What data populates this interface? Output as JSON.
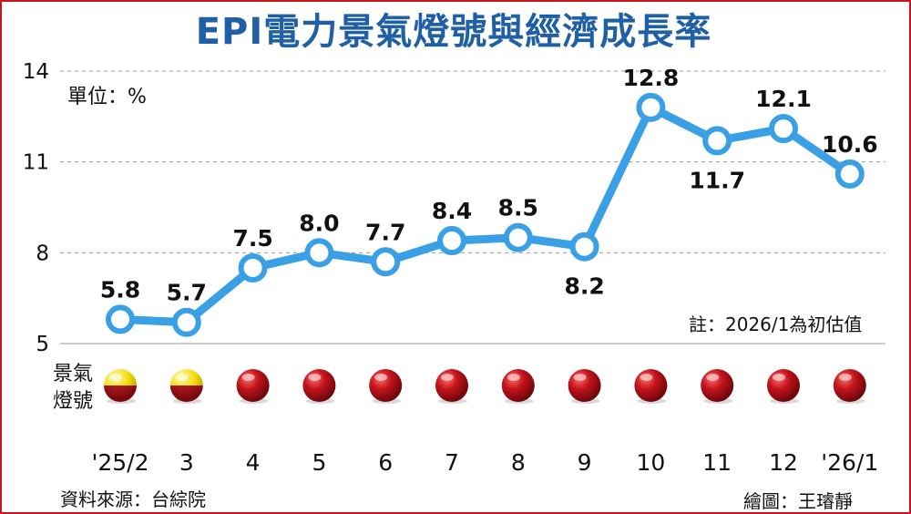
{
  "chart_data": {
    "type": "line",
    "title": "EPI電力景氣燈號與經濟成長率",
    "ylabel": "",
    "xlabel": "",
    "ylim": [
      5,
      14
    ],
    "yticks": [
      5,
      8,
      11,
      14
    ],
    "categories": [
      "'25/2",
      "3",
      "4",
      "5",
      "6",
      "7",
      "8",
      "9",
      "10",
      "11",
      "12",
      "'26/1"
    ],
    "series": [
      {
        "values": [
          5.8,
          5.7,
          7.5,
          8.0,
          7.7,
          8.4,
          8.5,
          8.2,
          12.8,
          11.7,
          12.1,
          10.6
        ],
        "labels": [
          "5.8",
          "5.7",
          "7.5",
          "8.0",
          "7.7",
          "8.4",
          "8.5",
          "8.2",
          "12.8",
          "11.7",
          "12.1",
          "10.6"
        ]
      }
    ],
    "grid": true,
    "line_color": "#3aa0e6",
    "unit_text": "單位：%",
    "note_text": "註：2026/1為初估值",
    "signal_label": "景氣燈號",
    "signals": [
      "yellow-red",
      "yellow-red",
      "red",
      "red",
      "red",
      "red",
      "red",
      "red",
      "red",
      "red",
      "red",
      "red"
    ]
  },
  "footer": {
    "source": "資料來源：台綜院",
    "credit": "繪圖：王璿靜"
  },
  "colors": {
    "title": "#1f5fa6",
    "border": "#c8161d",
    "signal_red": "#b5121b",
    "signal_yellow": "#f4e10a"
  }
}
